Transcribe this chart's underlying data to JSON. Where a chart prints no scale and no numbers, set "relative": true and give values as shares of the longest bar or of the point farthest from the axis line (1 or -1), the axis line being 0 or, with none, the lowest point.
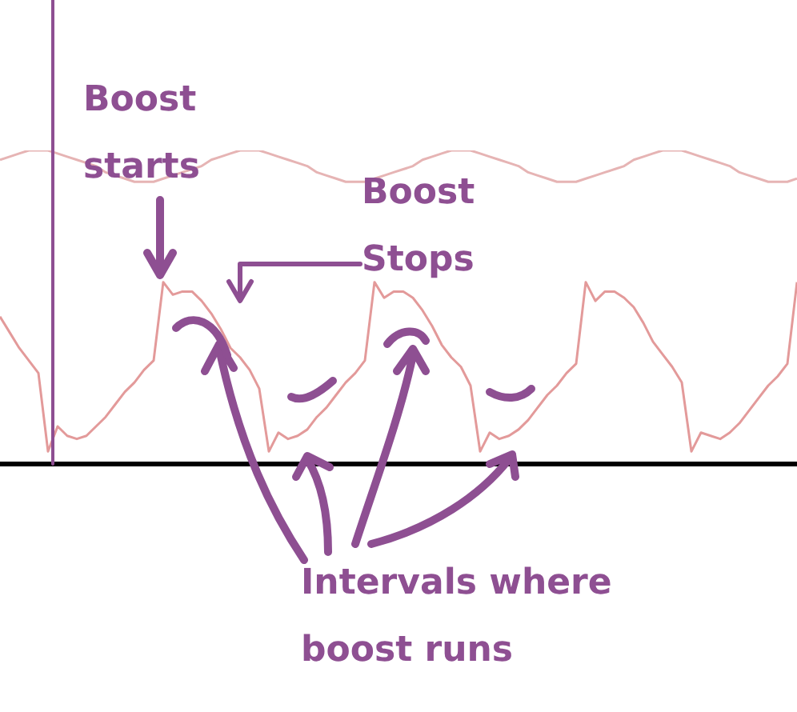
{
  "chart_data": {
    "type": "line",
    "relative": true,
    "legend": false,
    "marker": "none",
    "line_style": "solid",
    "categories": [
      null,
      null,
      null,
      null,
      null,
      null,
      null,
      null,
      null,
      null,
      null,
      null,
      null,
      null,
      null,
      null,
      null,
      null,
      null,
      null,
      null,
      null,
      null,
      null,
      null,
      null,
      null,
      null,
      null,
      null,
      null,
      null,
      null,
      null,
      null,
      null,
      null,
      null,
      null,
      null,
      null,
      null,
      null,
      null,
      null,
      null,
      null,
      null,
      null,
      null,
      null,
      null,
      null,
      null,
      null,
      null,
      null,
      null,
      null,
      null,
      null,
      null,
      null,
      null,
      null,
      null,
      null,
      null,
      null,
      null,
      null,
      null,
      null,
      null,
      null,
      null,
      null,
      null,
      null,
      null,
      null,
      null,
      null,
      null
    ],
    "series": [
      {
        "color": "#e6b4b4",
        "values": [
          0.97,
          0.98,
          0.99,
          1.0,
          1.0,
          1.0,
          0.99,
          0.98,
          0.97,
          0.96,
          0.95,
          0.93,
          0.92,
          0.91,
          0.9,
          0.9,
          0.9,
          0.91,
          0.92,
          0.93,
          0.94,
          0.95,
          0.97,
          0.98,
          0.99,
          1.0,
          1.0,
          1.0,
          0.99,
          0.98,
          0.97,
          0.96,
          0.95,
          0.93,
          0.92,
          0.91,
          0.9,
          0.9,
          0.9,
          0.91,
          0.92,
          0.93,
          0.94,
          0.95,
          0.97,
          0.98,
          0.99,
          1.0,
          1.0,
          1.0,
          0.99,
          0.98,
          0.97,
          0.96,
          0.95,
          0.93,
          0.92,
          0.91,
          0.9,
          0.9,
          0.9,
          0.91,
          0.92,
          0.93,
          0.94,
          0.95,
          0.97,
          0.98,
          0.99,
          1.0,
          1.0,
          1.0,
          0.99,
          0.98,
          0.97,
          0.96,
          0.95,
          0.93,
          0.92,
          0.91,
          0.9,
          0.9,
          0.9,
          0.91
        ]
      },
      {
        "color": "#e39a9a",
        "values": [
          0.47,
          0.42,
          0.37,
          0.33,
          0.29,
          0.04,
          0.12,
          0.09,
          0.08,
          0.09,
          0.12,
          0.15,
          0.19,
          0.23,
          0.26,
          0.3,
          0.33,
          0.58,
          0.54,
          0.55,
          0.55,
          0.52,
          0.48,
          0.43,
          0.37,
          0.34,
          0.3,
          0.24,
          0.04,
          0.1,
          0.08,
          0.09,
          0.11,
          0.15,
          0.18,
          0.22,
          0.26,
          0.29,
          0.33,
          0.58,
          0.53,
          0.55,
          0.55,
          0.53,
          0.49,
          0.44,
          0.38,
          0.34,
          0.31,
          0.25,
          0.04,
          0.1,
          0.08,
          0.09,
          0.11,
          0.14,
          0.18,
          0.22,
          0.25,
          0.29,
          0.32,
          0.58,
          0.52,
          0.55,
          0.55,
          0.53,
          0.5,
          0.45,
          0.39,
          0.35,
          0.31,
          0.26,
          0.04,
          0.1,
          0.09,
          0.08,
          0.1,
          0.13,
          0.17,
          0.21,
          0.25,
          0.28,
          0.32,
          0.58
        ]
      }
    ],
    "annotations": [
      "Boost starts",
      "Boost Stops",
      "Intervals where boost runs"
    ]
  }
}
